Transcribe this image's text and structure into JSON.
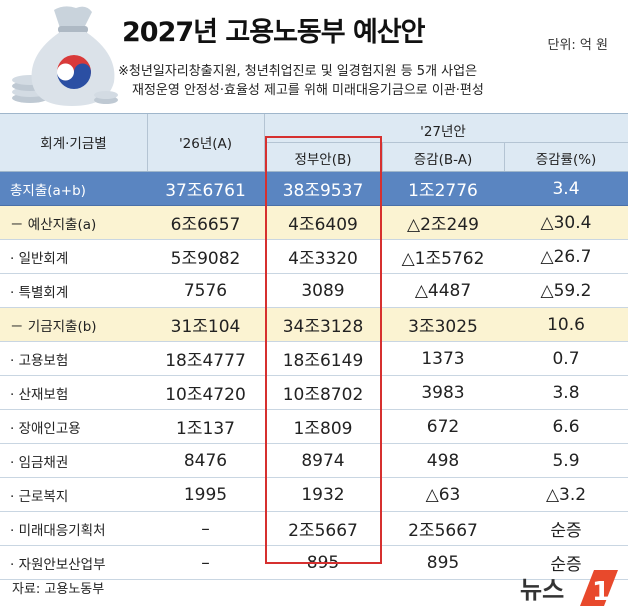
{
  "title": "2027년 고용노동부 예산안",
  "unit": "단위: 억 원",
  "note_lines": [
    "※청년일자리창출지원, 청년취업진로 및 일경험지원 등 5개 사업은",
    "재정운영 안정성·효율성 제고를 위해 미래대응기금으로 이관·편성"
  ],
  "header": {
    "col0": "회계·기금별",
    "col1": "'26년(A)",
    "group": "'27년안",
    "col2": "정부안(B)",
    "col3": "증감(B-A)",
    "col4": "증감률(%)"
  },
  "rows": [
    {
      "label": "총지출(a+b)",
      "a": "37조6761",
      "b": "38조9537",
      "diff": "1조2776",
      "rate": "3.4",
      "style": "total"
    },
    {
      "label": "－ 예산지출(a)",
      "a": "6조6657",
      "b": "4조6409",
      "diff": "△2조249",
      "rate": "△30.4",
      "style": "sub"
    },
    {
      "label": "· 일반회계",
      "a": "5조9082",
      "b": "4조3320",
      "diff": "△1조5762",
      "rate": "△26.7",
      "style": "plain"
    },
    {
      "label": "· 특별회계",
      "a": "7576",
      "b": "3089",
      "diff": "△4487",
      "rate": "△59.2",
      "style": "plain"
    },
    {
      "label": "－ 기금지출(b)",
      "a": "31조104",
      "b": "34조3128",
      "diff": "3조3025",
      "rate": "10.6",
      "style": "sub"
    },
    {
      "label": "· 고용보험",
      "a": "18조4777",
      "b": "18조6149",
      "diff": "1373",
      "rate": "0.7",
      "style": "plain"
    },
    {
      "label": "· 산재보험",
      "a": "10조4720",
      "b": "10조8702",
      "diff": "3983",
      "rate": "3.8",
      "style": "plain"
    },
    {
      "label": "· 장애인고용",
      "a": "1조137",
      "b": "1조809",
      "diff": "672",
      "rate": "6.6",
      "style": "plain"
    },
    {
      "label": "· 임금채권",
      "a": "8476",
      "b": "8974",
      "diff": "498",
      "rate": "5.9",
      "style": "plain"
    },
    {
      "label": "· 근로복지",
      "a": "1995",
      "b": "1932",
      "diff": "△63",
      "rate": "△3.2",
      "style": "plain"
    },
    {
      "label": "· 미래대응기획처",
      "a": "–",
      "b": "2조5667",
      "diff": "2조5667",
      "rate": "순증",
      "style": "plain"
    },
    {
      "label": "· 자원안보산업부",
      "a": "–",
      "b": "895",
      "diff": "895",
      "rate": "순증",
      "style": "plain"
    }
  ],
  "source": "자료: 고용노동부",
  "logo_text": "뉴스1",
  "colors": {
    "total_row": "#5a85c1",
    "sub_row": "#fbf3d2",
    "header": "#dde9f3",
    "highlight": "#d6302f",
    "logo": "#e8492c"
  }
}
